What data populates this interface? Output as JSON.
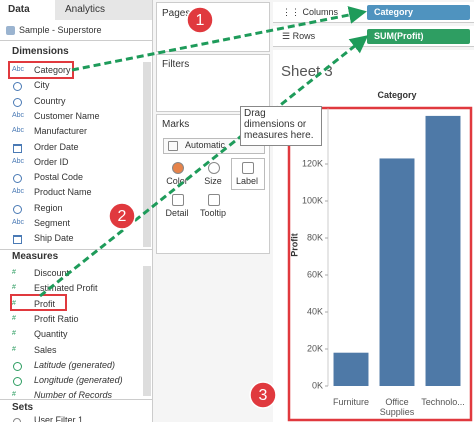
{
  "tabs": [
    "Data",
    "Analytics"
  ],
  "data_source": "Sample - Superstore",
  "dimensions": {
    "title": "Dimensions",
    "icon": "Abc",
    "items": [
      "Category",
      "City",
      "Country",
      "Customer Name",
      "Manufacturer",
      "Order Date",
      "Order ID",
      "Postal Code",
      "Product Name",
      "Region",
      "Segment",
      "Ship Date"
    ]
  },
  "measures": {
    "title": "Measures",
    "icon": "#",
    "items": [
      "Discount",
      "Estimated Profit",
      "Profit",
      "Profit Ratio",
      "Quantity",
      "Sales",
      "Latitude (generated)",
      "Longitude (generated)",
      "Number of Records"
    ]
  },
  "sets": {
    "title": "Sets",
    "items": [
      "User Filter 1"
    ]
  },
  "cards": {
    "pages": "Pages",
    "filters": "Filters",
    "marks": "Marks",
    "mark_type": "Automatic",
    "mark_buttons": [
      "Color",
      "Size",
      "Label",
      "Detail",
      "Tooltip"
    ]
  },
  "shelves": {
    "columns": "Columns",
    "rows": "Rows",
    "columns_pill": "Category",
    "rows_pill": "SUM(Profit)"
  },
  "sheet_title": "Sheet 3",
  "drop_hint": "Drag dimensions or measures here.",
  "callouts": [
    "1",
    "2",
    "3"
  ],
  "chart": {
    "type": "bar",
    "title": "Category",
    "y_label": "Profit",
    "categories": [
      "Furniture",
      "Office Supplies",
      "Technolo..."
    ],
    "values": [
      18000,
      123000,
      146000
    ],
    "color": "#4e79a7",
    "ylim": [
      0,
      150000
    ],
    "yticks": [
      {
        "value": 0,
        "label": "0K"
      },
      {
        "value": 20000,
        "label": "20K"
      },
      {
        "value": 40000,
        "label": "40K"
      },
      {
        "value": 60000,
        "label": "60K"
      },
      {
        "value": 80000,
        "label": "80K"
      },
      {
        "value": 100000,
        "label": "100K"
      },
      {
        "value": 120000,
        "label": "120K"
      }
    ]
  }
}
